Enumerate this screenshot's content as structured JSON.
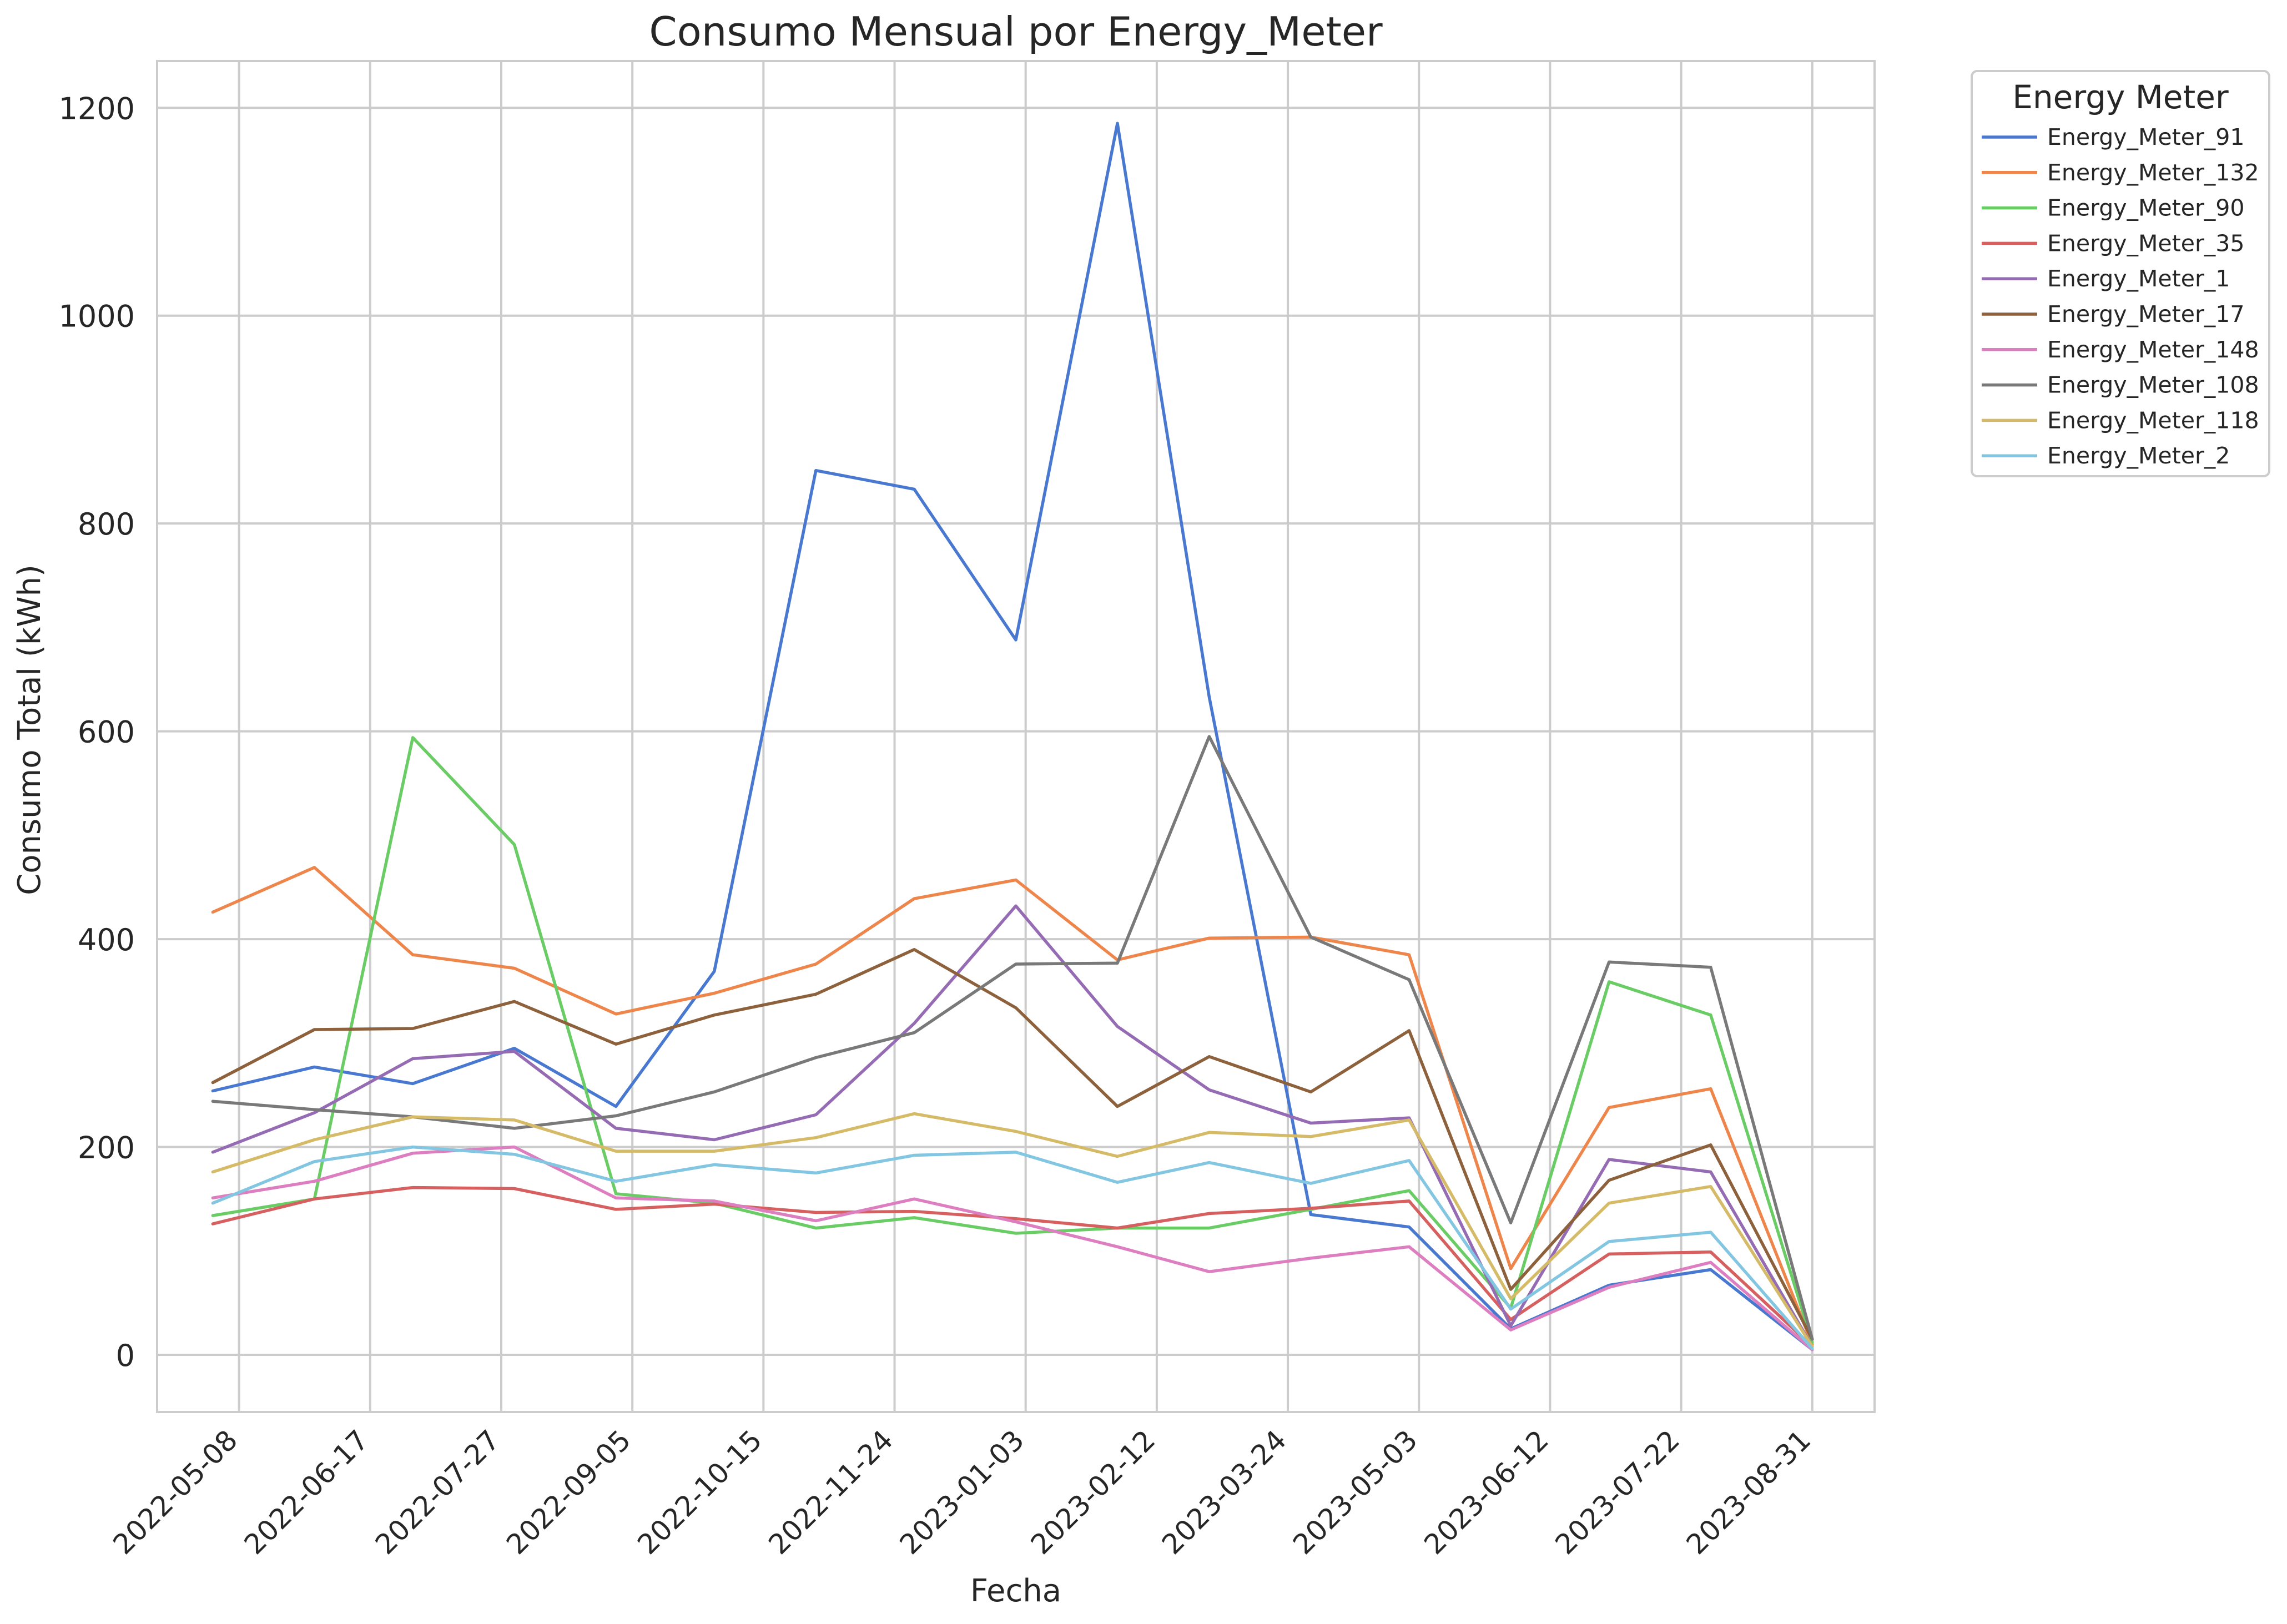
{
  "chart_data": {
    "type": "line",
    "title": "Consumo Mensual por Energy_Meter",
    "xlabel": "Fecha",
    "ylabel": "Consumo Total (kWh)",
    "ylim": [
      -55,
      1245
    ],
    "xlim": [
      "2022-04-13",
      "2023-09-19"
    ],
    "grid": true,
    "legend_placement": "outside-top-right",
    "legend_title": "Energy Meter",
    "x": [
      "2022-04-30",
      "2022-05-31",
      "2022-06-30",
      "2022-07-31",
      "2022-08-31",
      "2022-09-30",
      "2022-10-31",
      "2022-11-30",
      "2022-12-31",
      "2023-01-31",
      "2023-02-28",
      "2023-03-31",
      "2023-04-30",
      "2023-05-31",
      "2023-06-30",
      "2023-07-31",
      "2023-08-31"
    ],
    "x_ticks": [
      "2022-05-08",
      "2022-06-17",
      "2022-07-27",
      "2022-09-05",
      "2022-10-15",
      "2022-11-24",
      "2023-01-03",
      "2023-02-12",
      "2023-03-24",
      "2023-05-03",
      "2023-06-12",
      "2023-07-22",
      "2023-08-31"
    ],
    "y_ticks": [
      0,
      200,
      400,
      600,
      800,
      1000,
      1200
    ],
    "series": [
      {
        "name": "Energy_Meter_91",
        "color": "#4878d0",
        "values": [
          254,
          277,
          261,
          295,
          239,
          369,
          851,
          833,
          688,
          1185,
          633,
          135,
          123,
          25,
          67,
          82,
          5
        ]
      },
      {
        "name": "Energy_Meter_132",
        "color": "#ee854a",
        "values": [
          426,
          469,
          385,
          372,
          328,
          348,
          376,
          439,
          457,
          380,
          401,
          402,
          385,
          83,
          238,
          256,
          10
        ]
      },
      {
        "name": "Energy_Meter_90",
        "color": "#6acc64",
        "values": [
          134,
          150,
          594,
          491,
          155,
          146,
          122,
          132,
          117,
          122,
          122,
          140,
          158,
          45,
          359,
          327,
          12
        ]
      },
      {
        "name": "Energy_Meter_35",
        "color": "#d65f5f",
        "values": [
          126,
          150,
          161,
          160,
          140,
          145,
          137,
          138,
          131,
          122,
          136,
          141,
          148,
          34,
          97,
          99,
          8
        ]
      },
      {
        "name": "Energy_Meter_1",
        "color": "#956cb4",
        "values": [
          195,
          233,
          285,
          292,
          218,
          207,
          231,
          319,
          432,
          316,
          255,
          223,
          228,
          28,
          188,
          176,
          8
        ]
      },
      {
        "name": "Energy_Meter_17",
        "color": "#8c613c",
        "values": [
          262,
          313,
          314,
          340,
          299,
          327,
          347,
          390,
          334,
          239,
          287,
          253,
          312,
          63,
          168,
          202,
          15
        ]
      },
      {
        "name": "Energy_Meter_148",
        "color": "#dc7ec0",
        "values": [
          151,
          167,
          194,
          200,
          151,
          148,
          129,
          150,
          128,
          104,
          80,
          93,
          104,
          24,
          65,
          89,
          5
        ]
      },
      {
        "name": "Energy_Meter_108",
        "color": "#797979",
        "values": [
          244,
          236,
          229,
          218,
          230,
          253,
          286,
          310,
          376,
          377,
          595,
          402,
          361,
          127,
          378,
          373,
          15
        ]
      },
      {
        "name": "Energy_Meter_118",
        "color": "#d5bb67",
        "values": [
          176,
          207,
          229,
          226,
          196,
          196,
          209,
          232,
          215,
          191,
          214,
          210,
          226,
          54,
          146,
          162,
          8
        ]
      },
      {
        "name": "Energy_Meter_2",
        "color": "#82c6e2",
        "values": [
          146,
          186,
          200,
          193,
          167,
          183,
          175,
          192,
          195,
          166,
          185,
          165,
          187,
          44,
          109,
          118,
          6
        ]
      }
    ]
  }
}
